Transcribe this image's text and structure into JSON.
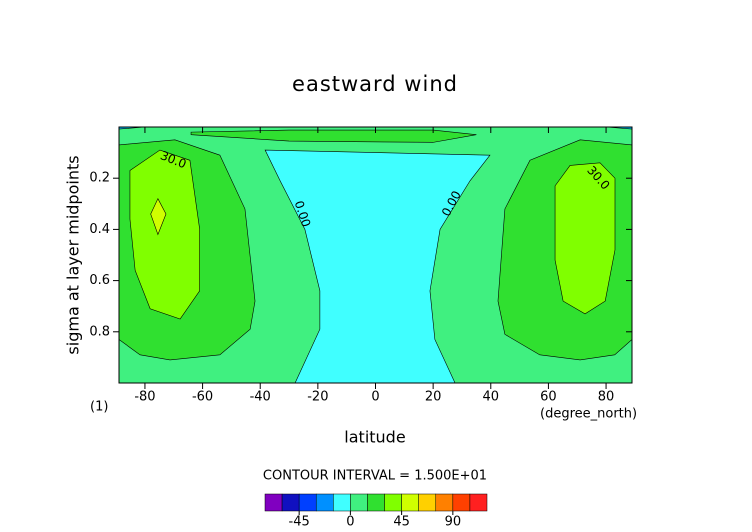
{
  "chart_data": {
    "type": "contour",
    "title": "eastward wind",
    "xlabel": "latitude",
    "ylabel": "sigma at layer midpoints",
    "x_note": "(1)",
    "x_unit": "(degree_north)",
    "contour_interval": "CONTOUR INTERVAL = 1.500E+01",
    "xlim": [
      -89,
      89
    ],
    "ylim": [
      1,
      0
    ],
    "xticks": [
      -80,
      -60,
      -40,
      -20,
      0,
      20,
      40,
      60,
      80
    ],
    "yticks": [
      0.2,
      0.4,
      0.6,
      0.8
    ],
    "fills": [
      {
        "color": "#40f080",
        "x": [
          -89,
          89,
          89,
          -89
        ],
        "y": [
          0,
          0,
          1,
          1
        ]
      },
      {
        "color": "#00c0ff",
        "x": [
          -89,
          -80,
          -89
        ],
        "y": [
          0,
          0,
          0.008
        ]
      },
      {
        "color": "#00c0ff",
        "x": [
          89,
          80,
          89
        ],
        "y": [
          0,
          0,
          0.008
        ]
      },
      {
        "color": "#30e030",
        "x": [
          -64,
          -30,
          20,
          35,
          20,
          -30,
          -64
        ],
        "y": [
          0.02,
          0.012,
          0.012,
          0.03,
          0.06,
          0.055,
          0.03
        ]
      },
      {
        "color": "#40ffff",
        "x": [
          -38.3,
          39.7,
          32.8,
          22.4,
          18.9,
          20.6,
          27.6,
          -27.9,
          -19.3,
          -19.3,
          -24.5,
          -33.1
        ],
        "y": [
          0.09,
          0.11,
          0.21,
          0.4,
          0.64,
          0.83,
          1,
          1,
          0.79,
          0.64,
          0.4,
          0.21
        ]
      },
      {
        "color": "#30e030",
        "x": [
          -89,
          -69.6,
          -54,
          -45.3,
          -41.8,
          -43.5,
          -54,
          -71.3,
          -81.7,
          -89
        ],
        "y": [
          0.07,
          0.05,
          0.11,
          0.32,
          0.68,
          0.79,
          0.89,
          0.91,
          0.89,
          0.83
        ]
      },
      {
        "color": "#80ff00",
        "x": [
          -85.2,
          -74.8,
          -64.4,
          -61,
          -61,
          -67.8,
          -78.2,
          -83.4,
          -85.2
        ],
        "y": [
          0.17,
          0.09,
          0.13,
          0.4,
          0.64,
          0.75,
          0.71,
          0.56,
          0.36
        ]
      },
      {
        "color": "#d0ff00",
        "x": [
          -75.5,
          -72.7,
          -75.5,
          -78
        ],
        "y": [
          0.28,
          0.34,
          0.42,
          0.34
        ]
      },
      {
        "color": "#30e030",
        "x": [
          89,
          71,
          53.6,
          44.9,
          42.5,
          44.9,
          57,
          71,
          83,
          89
        ],
        "y": [
          0.07,
          0.05,
          0.13,
          0.32,
          0.68,
          0.81,
          0.89,
          0.91,
          0.89,
          0.83
        ]
      },
      {
        "color": "#80ff00",
        "x": [
          62.3,
          67.5,
          77.9,
          83.1,
          83.1,
          79.7,
          72.7,
          65.1,
          62.3
        ],
        "y": [
          0.23,
          0.15,
          0.14,
          0.2,
          0.48,
          0.68,
          0.73,
          0.68,
          0.52
        ]
      }
    ],
    "contour_labels": [
      {
        "value": 30,
        "label": "30.0",
        "x": -70.2,
        "y": 0.13
      },
      {
        "value": 30,
        "label": "30.0",
        "x": 77.2,
        "y": 0.2
      },
      {
        "value": 0,
        "label": "0.00",
        "x": -25.5,
        "y": 0.34
      },
      {
        "value": 0,
        "label": "0.00",
        "x": 26.5,
        "y": 0.3
      }
    ],
    "colorbar": {
      "levels": [
        -75,
        -60,
        -45,
        -30,
        -15,
        0,
        15,
        30,
        45,
        60,
        75,
        90,
        105,
        120
      ],
      "colors": [
        "#8000c0",
        "#1010c0",
        "#0040ff",
        "#0090ff",
        "#40ffff",
        "#40f080",
        "#30e030",
        "#80ff00",
        "#d0ff00",
        "#ffd000",
        "#ff8000",
        "#ff4000",
        "#ff2020"
      ],
      "ticks": [
        -45,
        0,
        45,
        90
      ]
    }
  }
}
